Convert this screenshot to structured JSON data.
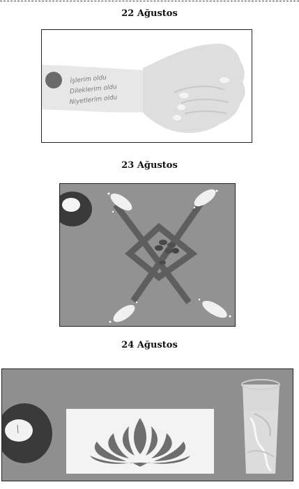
{
  "sections": [
    {
      "date": "22 Ağustos"
    },
    {
      "date": "23 Ağustos"
    },
    {
      "date": "24 Ağustos"
    }
  ],
  "wrist_writing": {
    "lines": [
      "İşlerim oldu",
      "Dileklerim oldu",
      "Niyetlerim oldu"
    ]
  }
}
